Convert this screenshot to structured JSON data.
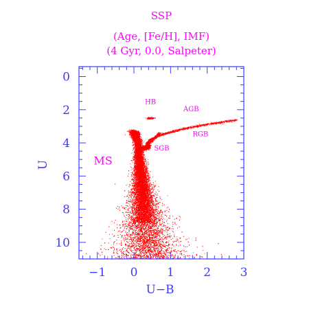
{
  "chart_data": {
    "type": "scatter",
    "title": "SSP",
    "subtitle_lines": [
      "(Age, [Fe/H], IMF)",
      "(4 Gyr, 0.0, Salpeter)"
    ],
    "xlabel": "U−B",
    "ylabel": "U",
    "xlim": [
      -1.5,
      3.0
    ],
    "ylim": [
      11.0,
      -0.6
    ],
    "y_inverted": true,
    "x_ticks": [
      -1,
      0,
      1,
      2,
      3
    ],
    "x_tick_labels": [
      "−1",
      "0",
      "1",
      "2",
      "3"
    ],
    "y_ticks": [
      0,
      2,
      4,
      6,
      8,
      10
    ],
    "y_tick_labels": [
      "0",
      "2",
      "4",
      "6",
      "8",
      "10"
    ],
    "grid": false,
    "annotations": [
      {
        "text": "MS",
        "x": -1.1,
        "y": 5.3
      },
      {
        "text": "SGB",
        "x": 0.55,
        "y": 4.45
      },
      {
        "text": "HB",
        "x": 0.3,
        "y": 1.65
      },
      {
        "text": "AGB",
        "x": 1.35,
        "y": 2.1
      },
      {
        "text": "RGB",
        "x": 1.6,
        "y": 3.6
      }
    ],
    "series": [
      {
        "point_count_estimate": 40000,
        "color": "#ff0000",
        "x": [
          0.0,
          0.02,
          0.05,
          0.08,
          0.1,
          0.15,
          0.2,
          0.25,
          0.3,
          0.35,
          0.4,
          0.5,
          0.6,
          0.8,
          1.0,
          1.2,
          1.4,
          1.6,
          1.8,
          2.0,
          2.2,
          2.4,
          2.6,
          2.8,
          0.35,
          0.4,
          0.45,
          0.0,
          0.05,
          0.1,
          0.15,
          0.2,
          0.25,
          0.3,
          0.4,
          0.5,
          0.6,
          0.2,
          0.3,
          0.4,
          0.5,
          0.6,
          0.7,
          0.9,
          1.2
        ],
        "y": [
          3.6,
          3.3,
          3.2,
          3.3,
          4.0,
          4.3,
          4.4,
          4.3,
          4.2,
          4.0,
          3.8,
          3.4,
          3.2,
          3.0,
          2.9,
          2.8,
          2.75,
          2.7,
          2.65,
          2.6,
          2.6,
          2.6,
          2.6,
          2.6,
          2.5,
          2.5,
          2.55,
          5.0,
          5.5,
          6.0,
          6.5,
          7.0,
          7.5,
          8.0,
          8.5,
          9.0,
          9.5,
          10.0,
          10.2,
          10.4,
          10.5,
          10.6,
          10.7,
          10.8,
          10.9
        ]
      }
    ]
  },
  "colors": {
    "axis": "#3b3bff",
    "title": "#ff00ff",
    "points": "#ff0000"
  }
}
